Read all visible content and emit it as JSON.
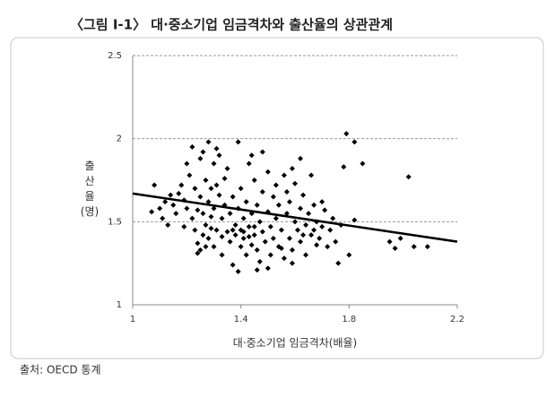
{
  "chart_data": {
    "type": "scatter",
    "title": "〈그림 Ⅰ-1〉 대·중소기업 임금격차와 출산율의 상관관계",
    "x_label": "대·중소기업 임금격차(배율)",
    "y_label": "출산율(명)",
    "source": "출처: OECD 통계",
    "color": "#000000",
    "xlim": [
      1,
      2.2
    ],
    "ylim": [
      1,
      2.5
    ],
    "xticks": [
      1,
      1.4,
      1.8,
      2.2
    ],
    "yticks": [
      1,
      1.5,
      2,
      2.5
    ],
    "grid": true,
    "x": [
      1.08,
      1.1,
      1.11,
      1.13,
      1.07,
      1.12,
      1.14,
      1.15,
      1.16,
      1.17,
      1.18,
      1.19,
      1.2,
      1.2,
      1.21,
      1.22,
      1.22,
      1.23,
      1.23,
      1.24,
      1.24,
      1.25,
      1.25,
      1.25,
      1.26,
      1.26,
      1.27,
      1.27,
      1.28,
      1.28,
      1.28,
      1.29,
      1.29,
      1.3,
      1.3,
      1.3,
      1.31,
      1.31,
      1.32,
      1.32,
      1.33,
      1.33,
      1.34,
      1.34,
      1.35,
      1.35,
      1.36,
      1.36,
      1.37,
      1.37,
      1.38,
      1.38,
      1.39,
      1.39,
      1.39,
      1.4,
      1.4,
      1.4,
      1.41,
      1.41,
      1.42,
      1.42,
      1.43,
      1.43,
      1.44,
      1.44,
      1.45,
      1.45,
      1.46,
      1.46,
      1.47,
      1.47,
      1.48,
      1.48,
      1.49,
      1.5,
      1.5,
      1.51,
      1.51,
      1.52,
      1.52,
      1.53,
      1.53,
      1.54,
      1.54,
      1.55,
      1.56,
      1.56,
      1.57,
      1.57,
      1.58,
      1.58,
      1.59,
      1.6,
      1.6,
      1.61,
      1.62,
      1.62,
      1.63,
      1.64,
      1.64,
      1.65,
      1.66,
      1.66,
      1.67,
      1.68,
      1.68,
      1.69,
      1.7,
      1.71,
      1.72,
      1.73,
      1.74,
      1.75,
      1.76,
      1.77,
      1.78,
      1.79,
      1.8,
      1.82,
      1.82,
      1.85,
      1.95,
      1.97,
      1.99,
      2.02,
      2.04,
      2.09,
      1.26,
      1.27,
      1.29,
      1.33,
      1.37,
      1.41,
      1.43,
      1.45,
      1.55,
      1.59,
      1.63,
      1.67,
      1.7,
      1.59,
      1.62,
      1.48,
      1.44,
      1.31,
      1.19,
      1.24,
      1.5,
      1.46
    ],
    "y": [
      1.72,
      1.58,
      1.52,
      1.48,
      1.56,
      1.62,
      1.66,
      1.6,
      1.55,
      1.67,
      1.72,
      1.63,
      1.58,
      1.85,
      1.78,
      1.95,
      1.52,
      1.7,
      1.45,
      1.57,
      1.37,
      1.88,
      1.65,
      1.33,
      1.55,
      1.92,
      1.75,
      1.48,
      1.98,
      1.62,
      1.4,
      1.7,
      1.53,
      1.85,
      1.58,
      1.35,
      1.72,
      1.45,
      1.66,
      1.9,
      1.52,
      1.3,
      1.76,
      1.6,
      1.44,
      1.82,
      1.55,
      1.38,
      1.24,
      1.65,
      1.48,
      1.42,
      1.98,
      1.2,
      1.58,
      1.35,
      1.45,
      1.7,
      1.52,
      1.4,
      1.3,
      1.62,
      1.47,
      1.85,
      1.36,
      1.55,
      1.42,
      1.75,
      1.33,
      1.6,
      1.26,
      1.5,
      1.68,
      1.44,
      1.38,
      1.8,
      1.56,
      1.3,
      1.47,
      1.65,
      1.4,
      1.72,
      1.52,
      1.35,
      1.6,
      1.45,
      1.78,
      1.28,
      1.55,
      1.68,
      1.4,
      1.62,
      1.33,
      1.5,
      1.73,
      1.45,
      1.38,
      1.58,
      1.66,
      1.48,
      1.3,
      1.55,
      1.42,
      1.78,
      1.6,
      1.36,
      1.5,
      1.4,
      1.47,
      1.57,
      1.35,
      1.45,
      1.52,
      1.38,
      1.25,
      1.48,
      1.83,
      2.03,
      1.3,
      1.98,
      1.51,
      1.85,
      1.38,
      1.34,
      1.4,
      1.77,
      1.35,
      1.35,
      1.42,
      1.35,
      1.46,
      1.41,
      1.45,
      1.44,
      1.41,
      1.47,
      1.34,
      1.25,
      1.42,
      1.45,
      1.62,
      1.82,
      1.88,
      1.92,
      1.9,
      1.94,
      1.47,
      1.31,
      1.22,
      1.21
    ],
    "trendline": {
      "x": [
        1,
        2.2
      ],
      "y": [
        1.67,
        1.38
      ]
    }
  }
}
